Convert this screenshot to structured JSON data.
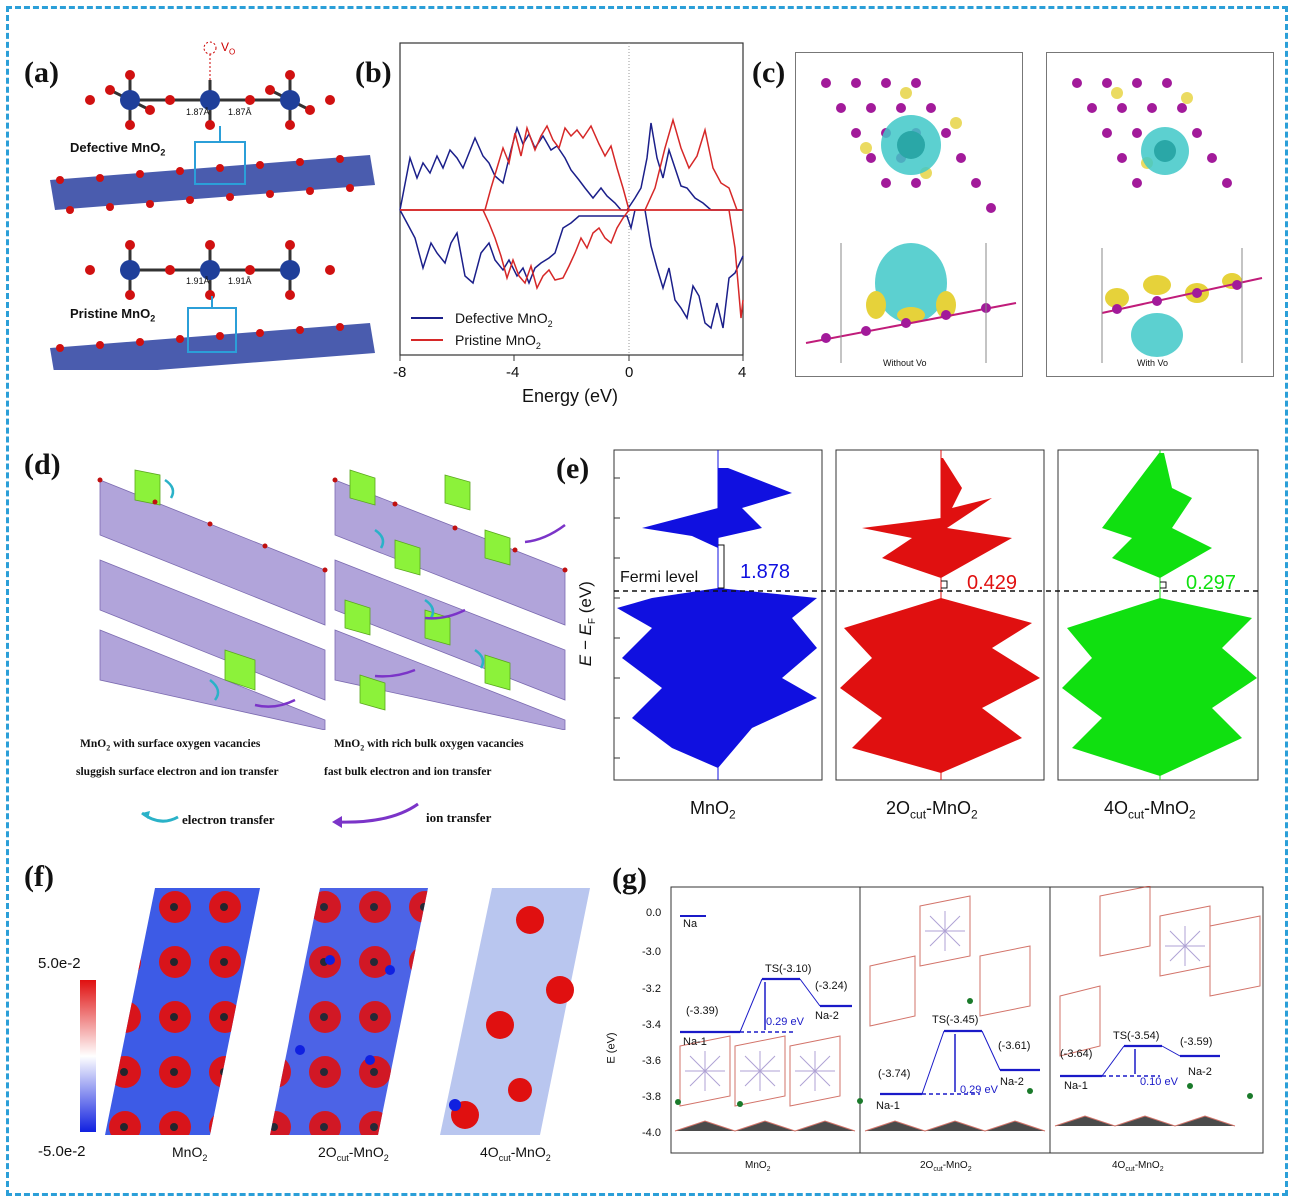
{
  "panels": {
    "a": {
      "label": "(a)",
      "vo_label": "V",
      "vo_sub": "O",
      "bond_defective_left": "1.87Å",
      "bond_defective_right": "1.87Å",
      "bond_pristine_left": "1.91Å",
      "bond_pristine_right": "1.91Å",
      "defective_label": "Defective MnO",
      "pristine_label": "Pristine MnO",
      "sub2": "2"
    },
    "b": {
      "label": "(b)",
      "legend_defective": "Defective MnO",
      "legend_pristine": "Pristine MnO",
      "sub2": "2"
    },
    "c": {
      "label": "(c)",
      "caption_left": "Without Vo",
      "caption_right": "With Vo"
    },
    "d": {
      "label": "(d)",
      "caption_left_1": "MnO",
      "caption_left_1b": " with surface oxygen vacancies",
      "caption_left_2": "sluggish surface electron and ion transfer",
      "caption_right_1": "MnO",
      "caption_right_1b": " with rich bulk oxygen vacancies",
      "caption_right_2": "fast bulk electron and ion transfer",
      "sub2": "2",
      "legend_electron": "electron transfer",
      "legend_ion": "ion transfer"
    },
    "e": {
      "label": "(e)",
      "yaxis_label": "E − E",
      "yaxis_sub": "F",
      "yaxis_unit": " (eV)",
      "fermi_label": "Fermi level",
      "gap_1": "1.878",
      "gap_2": "0.429",
      "gap_3": "0.297",
      "x_1": "MnO",
      "x_2_pre": "2O",
      "x_2_sub": "cut",
      "x_2_post": "-MnO",
      "x_3_pre": "4O",
      "x_3_sub": "cut",
      "x_3_post": "-MnO",
      "sub2": "2"
    },
    "f": {
      "label": "(f)",
      "scale_max": "5.0e-2",
      "scale_min": "-5.0e-2",
      "cap_1": "MnO",
      "cap_2_pre": "2O",
      "cap_2_sub": "cut",
      "cap_2_post": "-MnO",
      "cap_3_pre": "4O",
      "cap_3_sub": "cut",
      "cap_3_post": "-MnO",
      "sub2": "2"
    },
    "g": {
      "label": "(g)",
      "yaxis_label": "E (eV)",
      "legend_na": "Na",
      "ts_1": "TS(-3.10)",
      "ts_2": "TS(-3.45)",
      "ts_3": "TS(-3.54)",
      "barrier_1": "0.29 eV",
      "barrier_2": "0.29 eV",
      "barrier_3": "0.10 eV",
      "e_na1_1": "(-3.39)",
      "e_na2_1": "(-3.24)",
      "e_na1_2": "(-3.74)",
      "e_na2_2": "(-3.61)",
      "e_na1_3": "(-3.64)",
      "e_na2_3": "(-3.59)",
      "na1": "Na-1",
      "na2": "Na-2",
      "x_1": "MnO",
      "x_2_pre": "2O",
      "x_2_sub": "cut",
      "x_2_post": "-MnO",
      "x_3_pre": "4O",
      "x_3_sub": "cut",
      "x_3_post": "-MnO",
      "sub2": "2"
    }
  },
  "chart_data": [
    {
      "type": "line",
      "panel": "b",
      "xlabel": "Energy (eV)",
      "xlim": [
        -8,
        4
      ],
      "xticks": [
        "-8",
        "-4",
        "0",
        "4"
      ],
      "series": [
        {
          "name": "Defective MnO2",
          "color": "#1b1f8a"
        },
        {
          "name": "Pristine MnO2",
          "color": "#d62828"
        }
      ]
    },
    {
      "type": "bar",
      "panel": "g",
      "ylabel": "E (eV)",
      "yticks": [
        "0.0",
        "-3.0",
        "-3.2",
        "-3.4",
        "-3.6",
        "-3.8",
        "-4.0"
      ],
      "categories": [
        "MnO2",
        "2Ocut-MnO2",
        "4Ocut-MnO2"
      ],
      "series": [
        {
          "name": "Na-1",
          "values": [
            -3.39,
            -3.74,
            -3.64
          ]
        },
        {
          "name": "TS",
          "values": [
            -3.1,
            -3.45,
            -3.54
          ]
        },
        {
          "name": "Na-2",
          "values": [
            -3.24,
            -3.61,
            -3.59
          ]
        }
      ],
      "barriers_eV": [
        0.29,
        0.29,
        0.1
      ]
    },
    {
      "type": "bar",
      "panel": "e",
      "categories": [
        "MnO2",
        "2Ocut-MnO2",
        "4Ocut-MnO2"
      ],
      "values": [
        1.878,
        0.429,
        0.297
      ],
      "colors": [
        "#1010e0",
        "#e01010",
        "#10e010"
      ]
    }
  ]
}
